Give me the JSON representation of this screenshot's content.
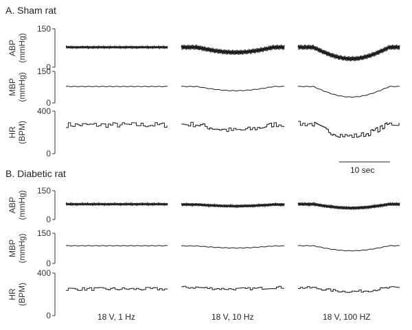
{
  "chart_data": {
    "type": "line",
    "scale_bar_label": "10 sec",
    "conditions": [
      "18 V, 1 Hz",
      "18 V, 10 Hz",
      "18 V, 100 HZ"
    ],
    "colors": {
      "trace": "#1a1a1a",
      "axis": "#333333"
    },
    "panels": [
      {
        "title": "A. Sham rat",
        "rows": [
          {
            "key": "abp",
            "ylabel_top": "ABP",
            "ylabel_bottom": "(mmHg)",
            "ytick_top": "150",
            "ytick_bottom": "0",
            "ylim": [
              0,
              150
            ],
            "series": [
              {
                "condition": "18 V, 1 Hz",
                "mean": 78,
                "amplitude": 5,
                "dip": 0
              },
              {
                "condition": "18 V, 10 Hz",
                "mean": 78,
                "amplitude": 10,
                "dip": 20
              },
              {
                "condition": "18 V, 100 HZ",
                "mean": 78,
                "amplitude": 10,
                "dip": 45
              }
            ]
          },
          {
            "key": "mbp",
            "ylabel_top": "MBP",
            "ylabel_bottom": "(mmHg)",
            "ytick_top": "150",
            "ytick_bottom": "0",
            "ylim": [
              0,
              150
            ],
            "series": [
              {
                "condition": "18 V, 1 Hz",
                "mean": 78,
                "amplitude": 0,
                "dip": 0
              },
              {
                "condition": "18 V, 10 Hz",
                "mean": 78,
                "amplitude": 0,
                "dip": 20
              },
              {
                "condition": "18 V, 100 HZ",
                "mean": 78,
                "amplitude": 0,
                "dip": 50
              }
            ]
          },
          {
            "key": "hr",
            "ylabel_top": "HR",
            "ylabel_bottom": "(BPM)",
            "ytick_top": "400",
            "ytick_bottom": "0",
            "ylim": [
              0,
              400
            ],
            "series": [
              {
                "condition": "18 V, 1 Hz",
                "mean": 270,
                "amplitude": 25,
                "dip": 0
              },
              {
                "condition": "18 V, 10 Hz",
                "mean": 275,
                "amplitude": 25,
                "dip": 55
              },
              {
                "condition": "18 V, 100 HZ",
                "mean": 280,
                "amplitude": 25,
                "dip": 115
              }
            ]
          }
        ]
      },
      {
        "title": "B. Diabetic rat",
        "rows": [
          {
            "key": "abp",
            "ylabel_top": "ABP",
            "ylabel_bottom": "(mmHg)",
            "ytick_top": "150",
            "ytick_bottom": "0",
            "ylim": [
              0,
              150
            ],
            "series": [
              {
                "condition": "18 V, 1 Hz",
                "mean": 80,
                "amplitude": 7,
                "dip": 0
              },
              {
                "condition": "18 V, 10 Hz",
                "mean": 78,
                "amplitude": 8,
                "dip": 8
              },
              {
                "condition": "18 V, 100 HZ",
                "mean": 80,
                "amplitude": 9,
                "dip": 20
              }
            ]
          },
          {
            "key": "mbp",
            "ylabel_top": "MBP",
            "ylabel_bottom": "(mmHg)",
            "ytick_top": "150",
            "ytick_bottom": "0",
            "ylim": [
              0,
              150
            ],
            "series": [
              {
                "condition": "18 V, 1 Hz",
                "mean": 88,
                "amplitude": 0,
                "dip": 0
              },
              {
                "condition": "18 V, 10 Hz",
                "mean": 87,
                "amplitude": 0,
                "dip": 10
              },
              {
                "condition": "18 V, 100 HZ",
                "mean": 88,
                "amplitude": 0,
                "dip": 25
              }
            ]
          },
          {
            "key": "hr",
            "ylabel_top": "HR",
            "ylabel_bottom": "(BPM)",
            "ytick_top": "400",
            "ytick_bottom": "0",
            "ylim": [
              0,
              400
            ],
            "series": [
              {
                "condition": "18 V, 1 Hz",
                "mean": 250,
                "amplitude": 15,
                "dip": 0
              },
              {
                "condition": "18 V, 10 Hz",
                "mean": 265,
                "amplitude": 12,
                "dip": 15
              },
              {
                "condition": "18 V, 100 HZ",
                "mean": 262,
                "amplitude": 12,
                "dip": 35
              }
            ]
          }
        ]
      }
    ]
  }
}
